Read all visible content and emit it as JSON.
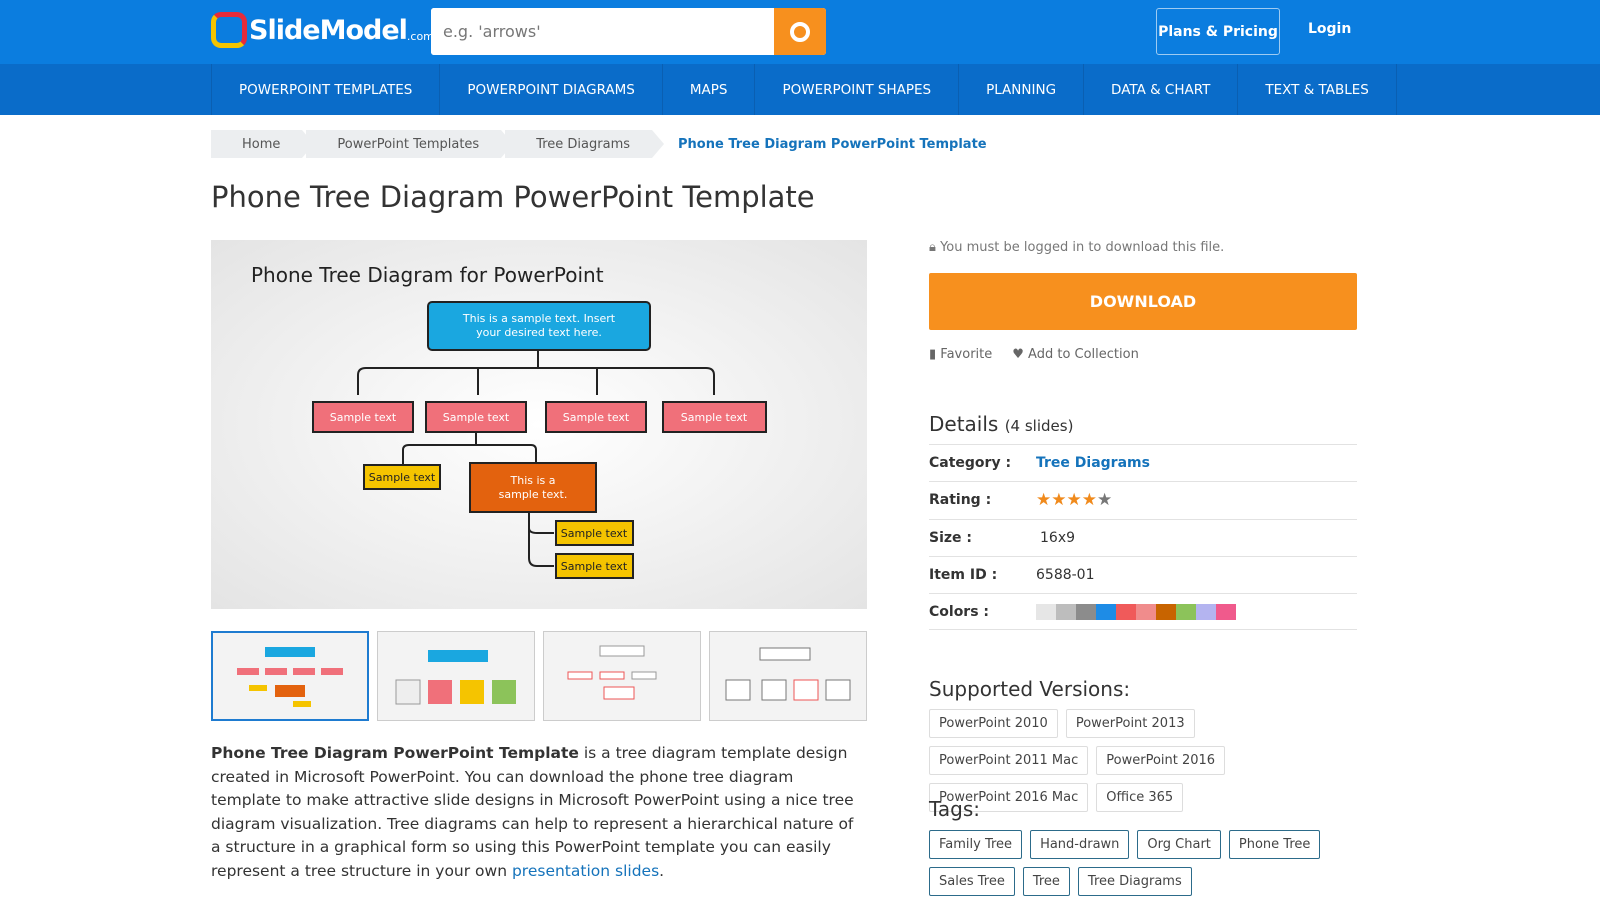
{
  "header": {
    "logo": "SlideModel",
    "logo_suffix": ".com",
    "search_placeholder": "e.g. 'arrows'",
    "plans": "Plans & Pricing",
    "login": "Login"
  },
  "nav": [
    "POWERPOINT TEMPLATES",
    "POWERPOINT DIAGRAMS",
    "MAPS",
    "POWERPOINT SHAPES",
    "PLANNING",
    "DATA & CHART",
    "TEXT & TABLES"
  ],
  "breadcrumb": [
    "Home",
    "PowerPoint Templates",
    "Tree Diagrams",
    "Phone Tree Diagram PowerPoint Template"
  ],
  "title": "Phone Tree Diagram PowerPoint Template",
  "preview": {
    "slide_title": "Phone Tree Diagram for PowerPoint",
    "top_box": [
      "This is a sample text. Insert",
      "your desired text here."
    ],
    "sample": "Sample text",
    "orange_box": [
      "This is a",
      "sample text."
    ]
  },
  "description": {
    "bold": "Phone Tree Diagram PowerPoint Template",
    "text": " is a tree diagram template design created in Microsoft PowerPoint. You can download the phone tree diagram template to make attractive slide designs in Microsoft PowerPoint using a nice tree diagram visualization. Tree diagrams can help to represent a hierarchical nature of a structure in a graphical form so using this PowerPoint template you can easily represent a tree structure in your own ",
    "link": "presentation slides",
    "end": "."
  },
  "sidebar": {
    "login_notice": "You must be logged in to download this file.",
    "download": "DOWNLOAD",
    "favorite": "Favorite",
    "add_collection": "Add to Collection",
    "details_title": "Details",
    "details_count": "(4 slides)",
    "category_label": "Category :",
    "category": "Tree Diagrams",
    "rating_label": "Rating :",
    "rating": 4,
    "rating_max": 5,
    "size_label": "Size :",
    "size": "16x9",
    "item_label": "Item ID :",
    "item_id": "6588-01",
    "colors_label": "Colors :",
    "colors": [
      "#e6e6e6",
      "#bdbdbd",
      "#8c8c8c",
      "#1e8ce6",
      "#f05a5a",
      "#f08c8c",
      "#c86400",
      "#8cc35a",
      "#b4b4f0",
      "#f05a8c"
    ],
    "versions_title": "Supported Versions:",
    "versions": [
      "PowerPoint 2010",
      "PowerPoint 2013",
      "PowerPoint 2011 Mac",
      "PowerPoint 2016",
      "PowerPoint 2016 Mac",
      "Office 365"
    ],
    "tags_title": "Tags:",
    "tags": [
      "Family Tree",
      "Hand-drawn",
      "Org Chart",
      "Phone Tree",
      "Sales Tree",
      "Tree",
      "Tree Diagrams"
    ]
  }
}
